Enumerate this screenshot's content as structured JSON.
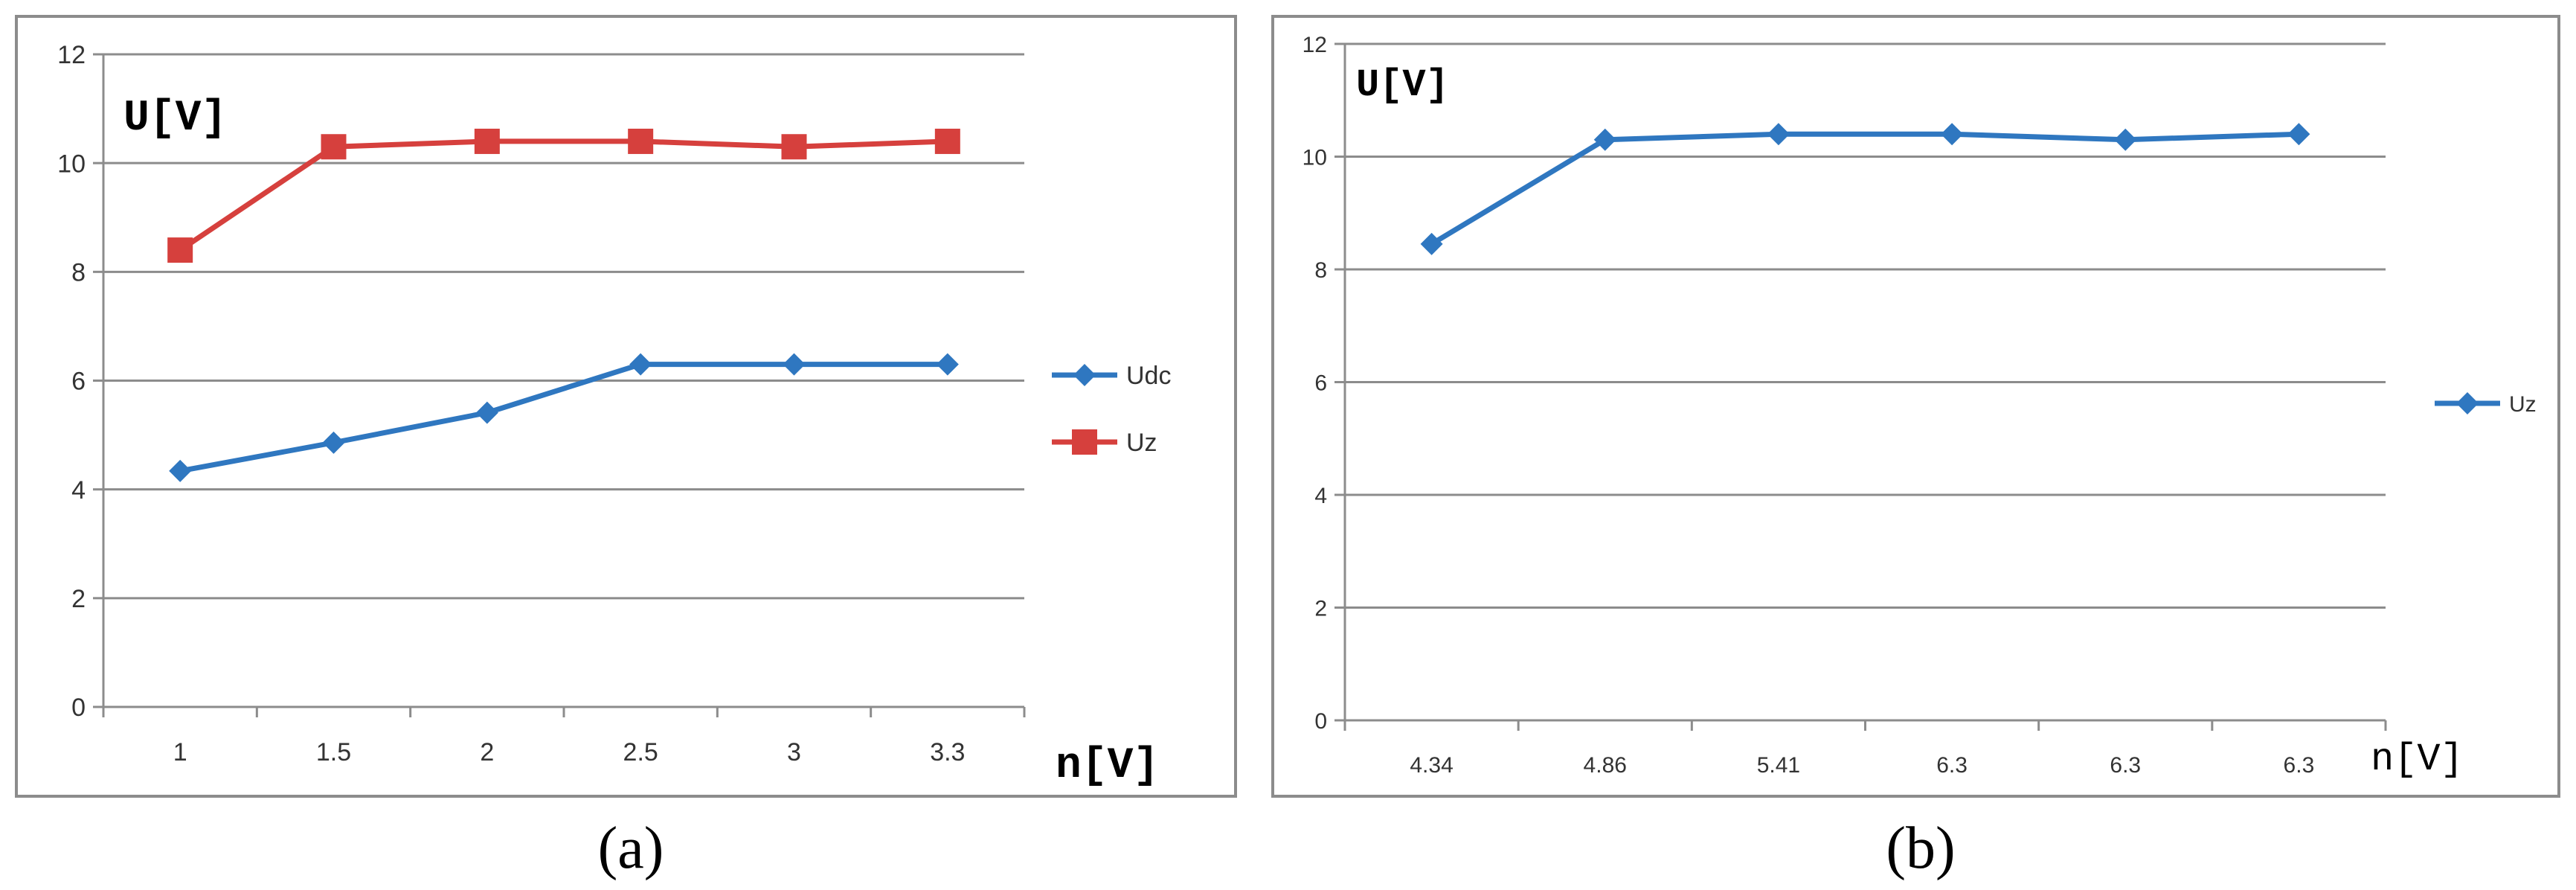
{
  "captions": [
    "(a)",
    "(b)"
  ],
  "colors": {
    "blue": "#2f77c0",
    "red": "#d6403d",
    "grid": "#8c8c8c"
  },
  "chart_data": [
    {
      "type": "line",
      "title": "",
      "xlabel": "n[V]",
      "ylabel": "U[V]",
      "categories": [
        "1",
        "1.5",
        "2",
        "2.5",
        "3",
        "3.3"
      ],
      "ylim": [
        0,
        12
      ],
      "yticks": [
        "0",
        "2",
        "4",
        "6",
        "8",
        "10",
        "12"
      ],
      "grid": true,
      "legend": "right",
      "series": [
        {
          "name": "Udc",
          "color": "#2f77c0",
          "marker": "diamond",
          "values": [
            4.34,
            4.86,
            5.41,
            6.3,
            6.3,
            6.3
          ]
        },
        {
          "name": "Uz",
          "color": "#d6403d",
          "marker": "square",
          "values": [
            8.4,
            10.3,
            10.4,
            10.4,
            10.3,
            10.4
          ]
        }
      ]
    },
    {
      "type": "line",
      "title": "",
      "xlabel": "n[V]",
      "ylabel": "U[V]",
      "categories": [
        "4.34",
        "4.86",
        "5.41",
        "6.3",
        "6.3",
        "6.3"
      ],
      "ylim": [
        0,
        12
      ],
      "yticks": [
        "0",
        "2",
        "4",
        "6",
        "8",
        "10",
        "12"
      ],
      "grid": true,
      "legend": "right",
      "series": [
        {
          "name": "Uz",
          "color": "#2f77c0",
          "marker": "diamond",
          "values": [
            8.45,
            10.3,
            10.4,
            10.4,
            10.3,
            10.4
          ]
        }
      ]
    }
  ]
}
